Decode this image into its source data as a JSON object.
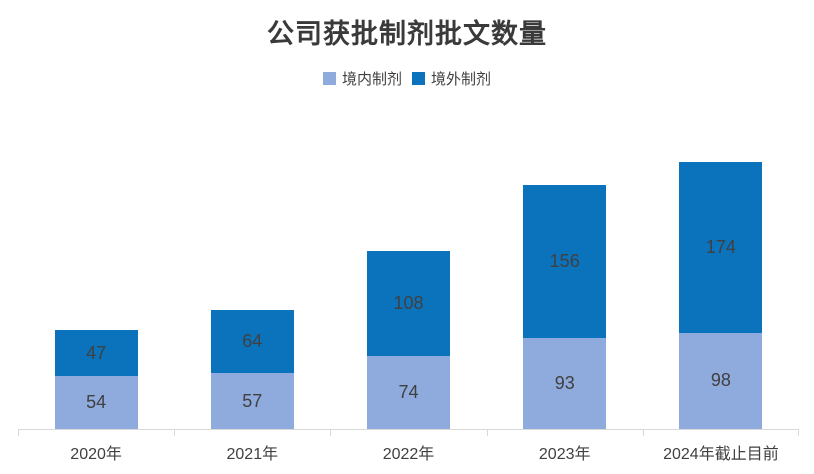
{
  "chart_data": {
    "type": "bar",
    "stacked": true,
    "title": "公司获批制剂批文数量",
    "categories": [
      "2020年",
      "2021年",
      "2022年",
      "2023年",
      "2024年截止目前"
    ],
    "series": [
      {
        "name": "境内制剂",
        "color": "#8FAADC",
        "values": [
          54,
          57,
          74,
          93,
          98
        ]
      },
      {
        "name": "境外制剂",
        "color": "#0B72BC",
        "values": [
          47,
          64,
          108,
          156,
          174
        ]
      }
    ],
    "totals": [
      101,
      121,
      182,
      249,
      272
    ],
    "legend_position": "top",
    "grid": false,
    "xlabel": "",
    "ylabel": "",
    "data_label_color": "#404040",
    "axis_color": "#D9D9D9",
    "title_color": "#3A3A3A",
    "text_color": "#404040"
  }
}
